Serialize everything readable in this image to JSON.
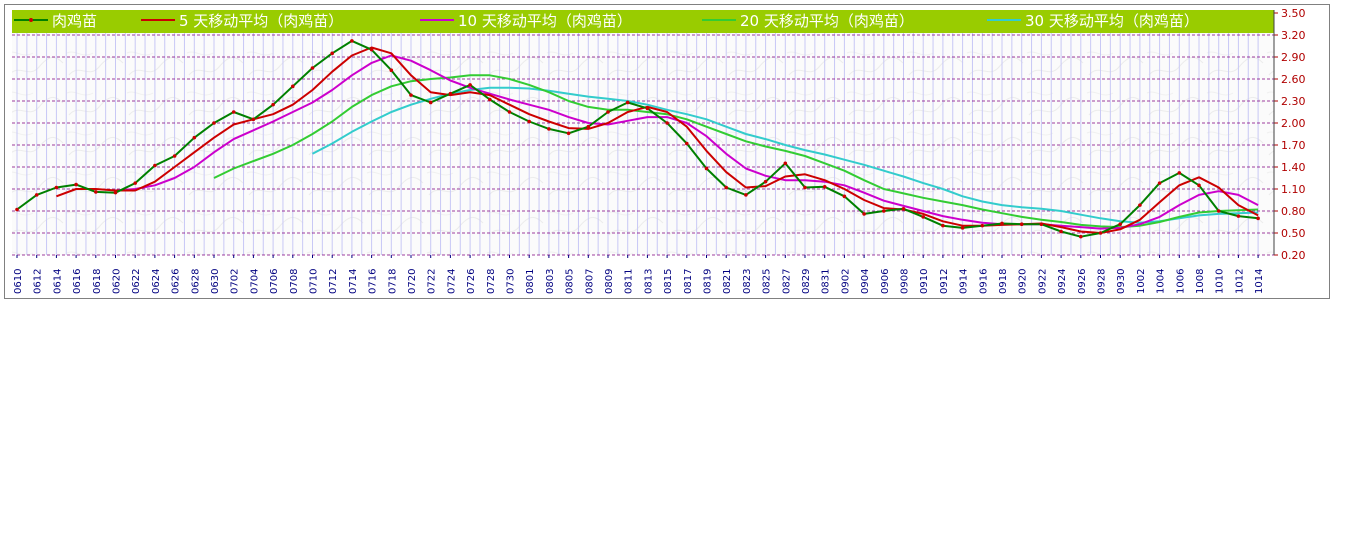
{
  "chart_data": {
    "type": "line",
    "title": "",
    "xlabel": "",
    "ylabel": "",
    "ylim": [
      0.2,
      3.5
    ],
    "y_ticks": [
      "3.50",
      "3.20",
      "2.90",
      "2.60",
      "2.30",
      "2.00",
      "1.70",
      "1.40",
      "1.10",
      "0.80",
      "0.50",
      "0.20"
    ],
    "grid": "horizontal dashed",
    "legend_position": "top",
    "legend_background": "#99cc00",
    "x_ticks": [
      "0610",
      "0612",
      "0614",
      "0616",
      "0618",
      "0620",
      "0622",
      "0624",
      "0626",
      "0628",
      "0630",
      "0702",
      "0704",
      "0706",
      "0708",
      "0710",
      "0712",
      "0714",
      "0716",
      "0718",
      "0720",
      "0722",
      "0724",
      "0726",
      "0728",
      "0730",
      "0801",
      "0803",
      "0805",
      "0807",
      "0809",
      "0811",
      "0813",
      "0815",
      "0817",
      "0819",
      "0821",
      "0823",
      "0825",
      "0827",
      "0829",
      "0831",
      "0902",
      "0904",
      "0906",
      "0908",
      "0910",
      "0912",
      "0914",
      "0916",
      "0918",
      "0920",
      "0922",
      "0924",
      "0926",
      "0928",
      "0930",
      "1002",
      "1004",
      "1006",
      "1008",
      "1010",
      "1012",
      "1014"
    ],
    "series": [
      {
        "name": "肉鸡苗",
        "color": "#008000",
        "marker_color": "#cc0000",
        "points": [
          [
            "0610",
            0.82
          ],
          [
            "0612",
            1.02
          ],
          [
            "0614",
            1.12
          ],
          [
            "0616",
            1.16
          ],
          [
            "0618",
            1.06
          ],
          [
            "0620",
            1.05
          ],
          [
            "0622",
            1.18
          ],
          [
            "0624",
            1.42
          ],
          [
            "0626",
            1.55
          ],
          [
            "0628",
            1.8
          ],
          [
            "0630",
            2.0
          ],
          [
            "0702",
            2.15
          ],
          [
            "0704",
            2.05
          ],
          [
            "0706",
            2.25
          ],
          [
            "0708",
            2.5
          ],
          [
            "0710",
            2.75
          ],
          [
            "0712",
            2.95
          ],
          [
            "0714",
            3.12
          ],
          [
            "0716",
            3.0
          ],
          [
            "0718",
            2.72
          ],
          [
            "0720",
            2.38
          ],
          [
            "0722",
            2.28
          ],
          [
            "0724",
            2.4
          ],
          [
            "0726",
            2.52
          ],
          [
            "0728",
            2.32
          ],
          [
            "0730",
            2.15
          ],
          [
            "0801",
            2.02
          ],
          [
            "0803",
            1.92
          ],
          [
            "0805",
            1.86
          ],
          [
            "0807",
            1.95
          ],
          [
            "0809",
            2.15
          ],
          [
            "0811",
            2.28
          ],
          [
            "0813",
            2.2
          ],
          [
            "0815",
            2.0
          ],
          [
            "0817",
            1.72
          ],
          [
            "0819",
            1.38
          ],
          [
            "0821",
            1.12
          ],
          [
            "0823",
            1.02
          ],
          [
            "0825",
            1.2
          ],
          [
            "0827",
            1.45
          ],
          [
            "0829",
            1.12
          ],
          [
            "0831",
            1.13
          ],
          [
            "0902",
            1.0
          ],
          [
            "0904",
            0.76
          ],
          [
            "0906",
            0.8
          ],
          [
            "0908",
            0.83
          ],
          [
            "0910",
            0.72
          ],
          [
            "0912",
            0.6
          ],
          [
            "0914",
            0.57
          ],
          [
            "0916",
            0.6
          ],
          [
            "0918",
            0.63
          ],
          [
            "0920",
            0.62
          ],
          [
            "0922",
            0.62
          ],
          [
            "0924",
            0.52
          ],
          [
            "0926",
            0.45
          ],
          [
            "0928",
            0.5
          ],
          [
            "0930",
            0.62
          ],
          [
            "1002",
            0.88
          ],
          [
            "1004",
            1.18
          ],
          [
            "1006",
            1.32
          ],
          [
            "1008",
            1.15
          ],
          [
            "1010",
            0.8
          ],
          [
            "1012",
            0.73
          ],
          [
            "1014",
            0.7
          ]
        ]
      },
      {
        "name": "5 天移动平均（肉鸡苗）",
        "color": "#cc0000",
        "points": [
          [
            "0614",
            1.0
          ],
          [
            "0616",
            1.1
          ],
          [
            "0618",
            1.1
          ],
          [
            "0620",
            1.08
          ],
          [
            "0622",
            1.08
          ],
          [
            "0624",
            1.2
          ],
          [
            "0626",
            1.4
          ],
          [
            "0628",
            1.6
          ],
          [
            "0630",
            1.8
          ],
          [
            "0702",
            1.98
          ],
          [
            "0704",
            2.05
          ],
          [
            "0706",
            2.12
          ],
          [
            "0708",
            2.25
          ],
          [
            "0710",
            2.45
          ],
          [
            "0712",
            2.7
          ],
          [
            "0714",
            2.92
          ],
          [
            "0716",
            3.03
          ],
          [
            "0718",
            2.95
          ],
          [
            "0720",
            2.65
          ],
          [
            "0722",
            2.42
          ],
          [
            "0724",
            2.38
          ],
          [
            "0726",
            2.42
          ],
          [
            "0728",
            2.38
          ],
          [
            "0730",
            2.25
          ],
          [
            "0801",
            2.12
          ],
          [
            "0803",
            2.02
          ],
          [
            "0805",
            1.93
          ],
          [
            "0807",
            1.92
          ],
          [
            "0809",
            2.0
          ],
          [
            "0811",
            2.15
          ],
          [
            "0813",
            2.22
          ],
          [
            "0815",
            2.15
          ],
          [
            "0817",
            1.95
          ],
          [
            "0819",
            1.62
          ],
          [
            "0821",
            1.33
          ],
          [
            "0823",
            1.12
          ],
          [
            "0825",
            1.14
          ],
          [
            "0827",
            1.27
          ],
          [
            "0829",
            1.3
          ],
          [
            "0831",
            1.22
          ],
          [
            "0902",
            1.1
          ],
          [
            "0904",
            0.95
          ],
          [
            "0906",
            0.84
          ],
          [
            "0908",
            0.82
          ],
          [
            "0910",
            0.76
          ],
          [
            "0912",
            0.66
          ],
          [
            "0914",
            0.6
          ],
          [
            "0916",
            0.6
          ],
          [
            "0918",
            0.61
          ],
          [
            "0920",
            0.62
          ],
          [
            "0922",
            0.63
          ],
          [
            "0924",
            0.58
          ],
          [
            "0926",
            0.52
          ],
          [
            "0928",
            0.5
          ],
          [
            "0930",
            0.55
          ],
          [
            "1002",
            0.68
          ],
          [
            "1004",
            0.92
          ],
          [
            "1006",
            1.15
          ],
          [
            "1008",
            1.26
          ],
          [
            "1010",
            1.12
          ],
          [
            "1012",
            0.88
          ],
          [
            "1014",
            0.74
          ]
        ]
      },
      {
        "name": "10 天移动平均（肉鸡苗）",
        "color": "#cc00cc",
        "points": [
          [
            "0620",
            1.08
          ],
          [
            "0622",
            1.1
          ],
          [
            "0624",
            1.15
          ],
          [
            "0626",
            1.25
          ],
          [
            "0628",
            1.4
          ],
          [
            "0630",
            1.6
          ],
          [
            "0702",
            1.78
          ],
          [
            "0704",
            1.9
          ],
          [
            "0706",
            2.02
          ],
          [
            "0708",
            2.15
          ],
          [
            "0710",
            2.28
          ],
          [
            "0712",
            2.45
          ],
          [
            "0714",
            2.65
          ],
          [
            "0716",
            2.82
          ],
          [
            "0718",
            2.92
          ],
          [
            "0720",
            2.85
          ],
          [
            "0722",
            2.72
          ],
          [
            "0724",
            2.58
          ],
          [
            "0726",
            2.48
          ],
          [
            "0728",
            2.4
          ],
          [
            "0730",
            2.32
          ],
          [
            "0801",
            2.25
          ],
          [
            "0803",
            2.18
          ],
          [
            "0805",
            2.08
          ],
          [
            "0807",
            2.0
          ],
          [
            "0809",
            1.98
          ],
          [
            "0811",
            2.03
          ],
          [
            "0813",
            2.08
          ],
          [
            "0815",
            2.08
          ],
          [
            "0817",
            2.0
          ],
          [
            "0819",
            1.82
          ],
          [
            "0821",
            1.58
          ],
          [
            "0823",
            1.38
          ],
          [
            "0825",
            1.28
          ],
          [
            "0827",
            1.22
          ],
          [
            "0829",
            1.22
          ],
          [
            "0831",
            1.2
          ],
          [
            "0902",
            1.15
          ],
          [
            "0904",
            1.05
          ],
          [
            "0906",
            0.94
          ],
          [
            "0908",
            0.87
          ],
          [
            "0910",
            0.8
          ],
          [
            "0912",
            0.73
          ],
          [
            "0914",
            0.68
          ],
          [
            "0916",
            0.64
          ],
          [
            "0918",
            0.62
          ],
          [
            "0920",
            0.62
          ],
          [
            "0922",
            0.62
          ],
          [
            "0924",
            0.6
          ],
          [
            "0926",
            0.58
          ],
          [
            "0928",
            0.56
          ],
          [
            "0930",
            0.57
          ],
          [
            "1002",
            0.62
          ],
          [
            "1004",
            0.72
          ],
          [
            "1006",
            0.88
          ],
          [
            "1008",
            1.02
          ],
          [
            "1010",
            1.07
          ],
          [
            "1012",
            1.02
          ],
          [
            "1014",
            0.88
          ]
        ]
      },
      {
        "name": "20 天移动平均（肉鸡苗）",
        "color": "#33cc33",
        "points": [
          [
            "0630",
            1.25
          ],
          [
            "0702",
            1.38
          ],
          [
            "0704",
            1.48
          ],
          [
            "0706",
            1.58
          ],
          [
            "0708",
            1.7
          ],
          [
            "0710",
            1.85
          ],
          [
            "0712",
            2.02
          ],
          [
            "0714",
            2.22
          ],
          [
            "0716",
            2.38
          ],
          [
            "0718",
            2.5
          ],
          [
            "0720",
            2.57
          ],
          [
            "0722",
            2.6
          ],
          [
            "0724",
            2.62
          ],
          [
            "0726",
            2.65
          ],
          [
            "0728",
            2.65
          ],
          [
            "0730",
            2.6
          ],
          [
            "0801",
            2.52
          ],
          [
            "0803",
            2.42
          ],
          [
            "0805",
            2.3
          ],
          [
            "0807",
            2.22
          ],
          [
            "0809",
            2.18
          ],
          [
            "0811",
            2.18
          ],
          [
            "0813",
            2.15
          ],
          [
            "0815",
            2.12
          ],
          [
            "0817",
            2.05
          ],
          [
            "0819",
            1.95
          ],
          [
            "0821",
            1.85
          ],
          [
            "0823",
            1.75
          ],
          [
            "0825",
            1.68
          ],
          [
            "0827",
            1.62
          ],
          [
            "0829",
            1.55
          ],
          [
            "0831",
            1.45
          ],
          [
            "0902",
            1.35
          ],
          [
            "0904",
            1.22
          ],
          [
            "0906",
            1.1
          ],
          [
            "0908",
            1.04
          ],
          [
            "0910",
            0.98
          ],
          [
            "0912",
            0.93
          ],
          [
            "0914",
            0.88
          ],
          [
            "0916",
            0.82
          ],
          [
            "0918",
            0.77
          ],
          [
            "0920",
            0.72
          ],
          [
            "0922",
            0.68
          ],
          [
            "0924",
            0.65
          ],
          [
            "0926",
            0.61
          ],
          [
            "0928",
            0.59
          ],
          [
            "0930",
            0.58
          ],
          [
            "1002",
            0.6
          ],
          [
            "1004",
            0.65
          ],
          [
            "1006",
            0.72
          ],
          [
            "1008",
            0.78
          ],
          [
            "1010",
            0.8
          ],
          [
            "1012",
            0.81
          ],
          [
            "1014",
            0.82
          ]
        ]
      },
      {
        "name": "30 天移动平均（肉鸡苗）",
        "color": "#33cccc",
        "points": [
          [
            "0710",
            1.58
          ],
          [
            "0712",
            1.72
          ],
          [
            "0714",
            1.88
          ],
          [
            "0716",
            2.02
          ],
          [
            "0718",
            2.15
          ],
          [
            "0720",
            2.25
          ],
          [
            "0722",
            2.33
          ],
          [
            "0724",
            2.4
          ],
          [
            "0726",
            2.45
          ],
          [
            "0728",
            2.48
          ],
          [
            "0730",
            2.48
          ],
          [
            "0801",
            2.47
          ],
          [
            "0803",
            2.44
          ],
          [
            "0805",
            2.4
          ],
          [
            "0807",
            2.36
          ],
          [
            "0809",
            2.33
          ],
          [
            "0811",
            2.3
          ],
          [
            "0813",
            2.25
          ],
          [
            "0815",
            2.18
          ],
          [
            "0817",
            2.12
          ],
          [
            "0819",
            2.05
          ],
          [
            "0821",
            1.95
          ],
          [
            "0823",
            1.85
          ],
          [
            "0825",
            1.78
          ],
          [
            "0827",
            1.7
          ],
          [
            "0829",
            1.63
          ],
          [
            "0831",
            1.57
          ],
          [
            "0902",
            1.5
          ],
          [
            "0904",
            1.43
          ],
          [
            "0906",
            1.35
          ],
          [
            "0908",
            1.27
          ],
          [
            "0910",
            1.18
          ],
          [
            "0912",
            1.1
          ],
          [
            "0914",
            1.0
          ],
          [
            "0916",
            0.93
          ],
          [
            "0918",
            0.88
          ],
          [
            "0920",
            0.85
          ],
          [
            "0922",
            0.83
          ],
          [
            "0924",
            0.8
          ],
          [
            "0926",
            0.75
          ],
          [
            "0928",
            0.7
          ],
          [
            "0930",
            0.66
          ],
          [
            "1002",
            0.64
          ],
          [
            "1004",
            0.66
          ],
          [
            "1006",
            0.7
          ],
          [
            "1008",
            0.74
          ],
          [
            "1010",
            0.76
          ],
          [
            "1012",
            0.77
          ],
          [
            "1014",
            0.78
          ]
        ]
      }
    ]
  }
}
